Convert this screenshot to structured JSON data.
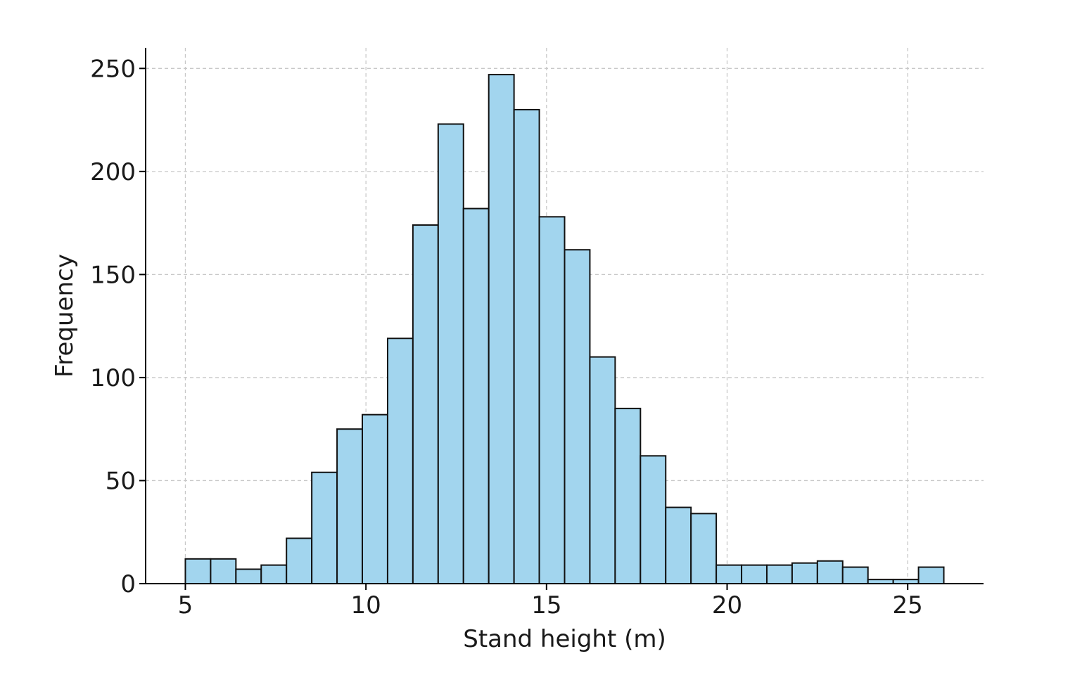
{
  "chart_data": {
    "type": "bar",
    "title": "",
    "xlabel": "Stand height (m)",
    "ylabel": "Frequency",
    "bin_edges": [
      5.0,
      5.7,
      6.4,
      7.1,
      7.8,
      8.5,
      9.2,
      9.9,
      10.6,
      11.3,
      12.0,
      12.7,
      13.4,
      14.1,
      14.8,
      15.5,
      16.2,
      16.9,
      17.6,
      18.3,
      19.0,
      19.7,
      20.4,
      21.1,
      21.8,
      22.5,
      23.2,
      23.9,
      24.6,
      25.3,
      26.0
    ],
    "values": [
      12,
      12,
      7,
      9,
      22,
      54,
      75,
      82,
      119,
      174,
      223,
      182,
      247,
      230,
      178,
      162,
      110,
      85,
      62,
      37,
      34,
      9,
      9,
      9,
      10,
      11,
      8,
      2,
      2,
      8
    ],
    "xlim": [
      3.9,
      27.1
    ],
    "ylim": [
      0,
      260
    ],
    "xticks": [
      5,
      10,
      15,
      20,
      25
    ],
    "yticks": [
      0,
      50,
      100,
      150,
      200,
      250
    ],
    "grid": true,
    "colors": {
      "bar_fill": "#a2d5ee",
      "bar_edge": "#111111",
      "grid": "#c8c8c8",
      "axis": "#000000"
    }
  }
}
